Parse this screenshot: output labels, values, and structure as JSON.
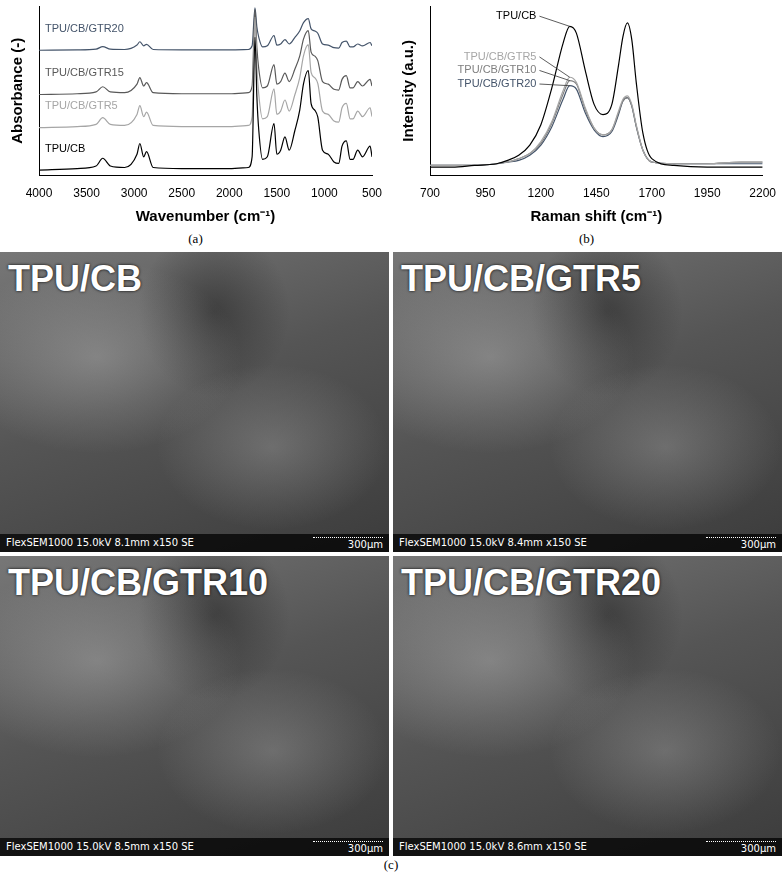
{
  "chart_data": [
    {
      "type": "line",
      "caption": "(a)",
      "x_label": "Wavenumber (cm⁻¹)",
      "y_label": "Absorbance (-)",
      "x": [
        4000,
        3600,
        3400,
        3330,
        3250,
        3100,
        2970,
        2940,
        2900,
        2870,
        2800,
        2500,
        2000,
        1800,
        1760,
        1730,
        1710,
        1690,
        1650,
        1600,
        1530,
        1500,
        1460,
        1415,
        1370,
        1310,
        1260,
        1220,
        1170,
        1140,
        1100,
        1070,
        1020,
        960,
        900,
        850,
        815,
        770,
        730,
        700,
        650,
        600,
        520,
        500
      ],
      "series": [
        {
          "name": "TPU/CB",
          "color": "#000000",
          "values": [
            0.15,
            0.19,
            0.26,
            0.47,
            0.26,
            0.22,
            0.58,
            0.87,
            0.51,
            0.65,
            0.22,
            0.19,
            0.19,
            0.22,
            0.51,
            3.75,
            2.13,
            1.23,
            0.44,
            0.51,
            1.41,
            0.58,
            0.69,
            1.05,
            0.69,
            1.23,
            1.77,
            2.49,
            2.85,
            1.95,
            1.77,
            1.59,
            0.69,
            0.58,
            0.37,
            0.33,
            0.8,
            0.94,
            0.44,
            0.44,
            0.69,
            0.51,
            0.8,
            0.51
          ]
        },
        {
          "name": "TPU/CB/GTR5",
          "color": "#a6a6a6",
          "values": [
            1.3,
            1.33,
            1.39,
            1.57,
            1.39,
            1.36,
            1.66,
            1.9,
            1.6,
            1.72,
            1.36,
            1.33,
            1.33,
            1.36,
            1.6,
            4.3,
            2.95,
            2.2,
            1.54,
            1.6,
            2.35,
            1.66,
            1.75,
            2.05,
            1.75,
            2.2,
            2.65,
            3.25,
            3.55,
            2.8,
            2.65,
            2.5,
            1.75,
            1.66,
            1.48,
            1.45,
            1.84,
            1.96,
            1.54,
            1.54,
            1.75,
            1.6,
            1.84,
            1.6
          ]
        },
        {
          "name": "TPU/CB/GTR15",
          "color": "#595959",
          "values": [
            2.2,
            2.22,
            2.27,
            2.41,
            2.27,
            2.25,
            2.48,
            2.66,
            2.43,
            2.52,
            2.25,
            2.22,
            2.22,
            2.25,
            2.43,
            4.5,
            3.47,
            2.89,
            2.38,
            2.43,
            3.01,
            2.48,
            2.55,
            2.78,
            2.55,
            2.89,
            3.24,
            3.7,
            3.93,
            3.35,
            3.24,
            3.12,
            2.55,
            2.48,
            2.34,
            2.32,
            2.61,
            2.71,
            2.38,
            2.38,
            2.55,
            2.43,
            2.61,
            2.43
          ]
        },
        {
          "name": "TPU/CB/GTR20",
          "color": "#44546a",
          "values": [
            3.4,
            3.41,
            3.43,
            3.5,
            3.43,
            3.42,
            3.54,
            3.63,
            3.52,
            3.56,
            3.42,
            3.41,
            3.41,
            3.42,
            3.52,
            4.55,
            4.03,
            3.75,
            3.49,
            3.52,
            3.8,
            3.54,
            3.57,
            3.69,
            3.57,
            3.75,
            3.92,
            4.15,
            4.26,
            3.98,
            3.92,
            3.86,
            3.57,
            3.54,
            3.47,
            3.46,
            3.61,
            3.65,
            3.49,
            3.49,
            3.57,
            3.52,
            3.61,
            3.52
          ]
        }
      ],
      "xlim": [
        4000,
        500
      ],
      "xticks": [
        4000,
        3500,
        3000,
        2500,
        2000,
        1500,
        1000,
        500
      ],
      "ylim": [
        0,
        4.6
      ],
      "tick_labels": "x",
      "grid": false
    },
    {
      "type": "line",
      "caption": "(b)",
      "x_label": "Raman shift (cm⁻¹)",
      "y_label": "Intensity (a.u.)",
      "x": [
        700,
        800,
        900,
        1000,
        1050,
        1100,
        1150,
        1200,
        1250,
        1300,
        1330,
        1360,
        1400,
        1440,
        1480,
        1520,
        1550,
        1570,
        1590,
        1610,
        1630,
        1660,
        1700,
        1800,
        1950,
        2100,
        2200
      ],
      "series": [
        {
          "name": "TPU/CB",
          "color": "#000000",
          "values": [
            0.05,
            0.05,
            0.06,
            0.07,
            0.09,
            0.12,
            0.18,
            0.3,
            0.52,
            0.78,
            0.88,
            0.84,
            0.62,
            0.42,
            0.36,
            0.42,
            0.65,
            0.82,
            0.9,
            0.8,
            0.55,
            0.25,
            0.1,
            0.06,
            0.05,
            0.05,
            0.05
          ]
        },
        {
          "name": "TPU/CB/GTR5",
          "color": "#a6a6a6",
          "values": [
            0.06,
            0.06,
            0.06,
            0.07,
            0.08,
            0.1,
            0.13,
            0.2,
            0.32,
            0.5,
            0.58,
            0.55,
            0.4,
            0.28,
            0.24,
            0.27,
            0.38,
            0.45,
            0.47,
            0.42,
            0.3,
            0.15,
            0.08,
            0.07,
            0.07,
            0.08,
            0.08
          ]
        },
        {
          "name": "TPU/CB/GTR10",
          "color": "#7f7f7f",
          "values": [
            0.06,
            0.06,
            0.06,
            0.07,
            0.08,
            0.1,
            0.13,
            0.19,
            0.31,
            0.48,
            0.56,
            0.54,
            0.39,
            0.28,
            0.24,
            0.27,
            0.37,
            0.44,
            0.46,
            0.41,
            0.29,
            0.15,
            0.08,
            0.07,
            0.07,
            0.08,
            0.08
          ]
        },
        {
          "name": "TPU/CB/GTR20",
          "color": "#44546a",
          "values": [
            0.06,
            0.06,
            0.06,
            0.07,
            0.08,
            0.09,
            0.12,
            0.18,
            0.29,
            0.45,
            0.53,
            0.51,
            0.37,
            0.27,
            0.23,
            0.26,
            0.36,
            0.44,
            0.46,
            0.41,
            0.29,
            0.15,
            0.08,
            0.07,
            0.07,
            0.07,
            0.07
          ]
        }
      ],
      "xlim": [
        700,
        2200
      ],
      "xticks": [
        700,
        950,
        1200,
        1450,
        1700,
        1950,
        2200
      ],
      "ylim": [
        0,
        1
      ],
      "tick_labels": "x",
      "grid": false
    }
  ],
  "images": {
    "caption": "(c)",
    "panels": [
      {
        "label": "TPU/CB",
        "info": "FlexSEM1000 15.0kV 8.1mm x150 SE",
        "scale_bar": "300μm"
      },
      {
        "label": "TPU/CB/GTR5",
        "info": "FlexSEM1000 15.0kV 8.4mm x150 SE",
        "scale_bar": "300μm"
      },
      {
        "label": "TPU/CB/GTR10",
        "info": "FlexSEM1000 15.0kV 8.5mm x150 SE",
        "scale_bar": "300μm"
      },
      {
        "label": "TPU/CB/GTR20",
        "info": "FlexSEM1000 15.0kV 8.6mm x150 SE",
        "scale_bar": "300μm"
      }
    ]
  }
}
